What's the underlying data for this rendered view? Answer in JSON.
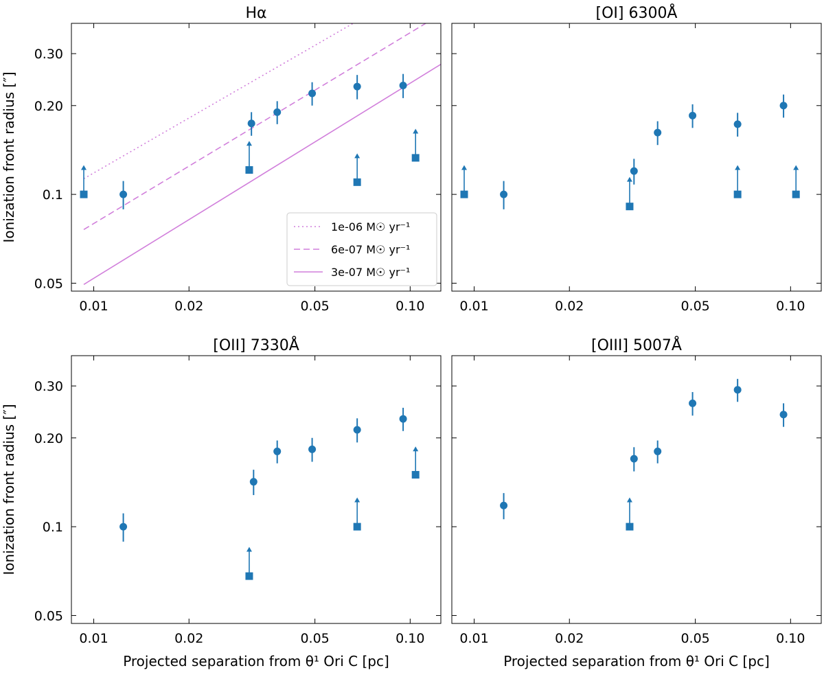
{
  "figure": {
    "x_axis_label": "Projected separation from θ¹ Ori C [pc]",
    "y_axis_label": "Ionization front radius [″]"
  },
  "chart_data": [
    {
      "type": "scatter",
      "title": "Hα",
      "xscale": "log",
      "yscale": "log",
      "xlim": [
        0.0085,
        0.125
      ],
      "ylim": [
        0.047,
        0.38
      ],
      "xticks": [
        0.01,
        0.02,
        0.05,
        0.1
      ],
      "xtick_labels": [
        "0.01",
        "0.02",
        "0.05",
        "0.10"
      ],
      "yticks": [
        0.05,
        0.1,
        0.2,
        0.3
      ],
      "ytick_labels": [
        "0.05",
        "0.1",
        "0.20",
        "0.30"
      ],
      "show_x_label": false,
      "show_y_label": true,
      "legend_position": "lower-right",
      "series": [
        {
          "marker": "circle",
          "color": "#1f77b4",
          "x": [
            0.0124,
            0.0315,
            0.038,
            0.049,
            0.068,
            0.095
          ],
          "y": [
            0.1,
            0.174,
            0.19,
            0.22,
            0.232,
            0.234
          ],
          "yerr": [
            0.011,
            0.016,
            0.017,
            0.02,
            0.022,
            0.022
          ]
        },
        {
          "marker": "square",
          "color": "#1f77b4",
          "lower_limit": true,
          "x": [
            0.0093,
            0.031,
            0.068,
            0.104
          ],
          "y": [
            0.1,
            0.121,
            0.11,
            0.133
          ],
          "arrow_to": [
            0.125,
            0.151,
            0.137,
            0.166
          ]
        }
      ],
      "lines": [
        {
          "label": "1e-06 M☉ yr⁻¹",
          "style": "dotted",
          "color": "#d17fdb",
          "x": [
            0.0093,
            0.066
          ],
          "y": [
            0.113,
            0.38
          ]
        },
        {
          "label": "6e-07 M☉ yr⁻¹",
          "style": "dashed",
          "color": "#d17fdb",
          "x": [
            0.0093,
            0.112
          ],
          "y": [
            0.076,
            0.38
          ]
        },
        {
          "label": "3e-07 M☉ yr⁻¹",
          "style": "solid",
          "color": "#d17fdb",
          "x": [
            0.0093,
            0.125
          ],
          "y": [
            0.0495,
            0.276
          ]
        }
      ]
    },
    {
      "type": "scatter",
      "title": "[OI] 6300Å",
      "xscale": "log",
      "yscale": "log",
      "xlim": [
        0.0085,
        0.125
      ],
      "ylim": [
        0.047,
        0.38
      ],
      "xticks": [
        0.01,
        0.02,
        0.05,
        0.1
      ],
      "xtick_labels": [
        "0.01",
        "0.02",
        "0.05",
        "0.10"
      ],
      "yticks": [
        0.05,
        0.1,
        0.2,
        0.3
      ],
      "ytick_labels": [],
      "show_x_label": false,
      "show_y_label": false,
      "series": [
        {
          "marker": "circle",
          "color": "#1f77b4",
          "x": [
            0.0124,
            0.032,
            0.038,
            0.049,
            0.068,
            0.095
          ],
          "y": [
            0.1,
            0.12,
            0.162,
            0.185,
            0.173,
            0.2
          ],
          "yerr": [
            0.011,
            0.012,
            0.015,
            0.017,
            0.016,
            0.018
          ]
        },
        {
          "marker": "square",
          "color": "#1f77b4",
          "lower_limit": true,
          "x": [
            0.0093,
            0.031,
            0.068,
            0.104
          ],
          "y": [
            0.1,
            0.091,
            0.1,
            0.1
          ],
          "arrow_to": [
            0.125,
            0.114,
            0.125,
            0.125
          ]
        }
      ]
    },
    {
      "type": "scatter",
      "title": "[OII] 7330Å",
      "xscale": "log",
      "yscale": "log",
      "xlim": [
        0.0085,
        0.125
      ],
      "ylim": [
        0.047,
        0.38
      ],
      "xticks": [
        0.01,
        0.02,
        0.05,
        0.1
      ],
      "xtick_labels": [
        "0.01",
        "0.02",
        "0.05",
        "0.10"
      ],
      "yticks": [
        0.05,
        0.1,
        0.2,
        0.3
      ],
      "ytick_labels": [
        "0.05",
        "0.1",
        "0.20",
        "0.30"
      ],
      "show_x_label": true,
      "show_y_label": true,
      "series": [
        {
          "marker": "circle",
          "color": "#1f77b4",
          "x": [
            0.0124,
            0.032,
            0.038,
            0.049,
            0.068,
            0.095
          ],
          "y": [
            0.1,
            0.142,
            0.18,
            0.183,
            0.213,
            0.232
          ],
          "yerr": [
            0.011,
            0.014,
            0.016,
            0.017,
            0.02,
            0.021
          ]
        },
        {
          "marker": "square",
          "color": "#1f77b4",
          "lower_limit": true,
          "x": [
            0.031,
            0.068,
            0.104
          ],
          "y": [
            0.068,
            0.1,
            0.15
          ],
          "arrow_to": [
            0.085,
            0.125,
            0.186
          ]
        }
      ]
    },
    {
      "type": "scatter",
      "title": "[OIII] 5007Å",
      "xscale": "log",
      "yscale": "log",
      "xlim": [
        0.0085,
        0.125
      ],
      "ylim": [
        0.047,
        0.38
      ],
      "xticks": [
        0.01,
        0.02,
        0.05,
        0.1
      ],
      "xtick_labels": [
        "0.01",
        "0.02",
        "0.05",
        "0.10"
      ],
      "yticks": [
        0.05,
        0.1,
        0.2,
        0.3
      ],
      "ytick_labels": [],
      "show_x_label": true,
      "show_y_label": false,
      "series": [
        {
          "marker": "circle",
          "color": "#1f77b4",
          "x": [
            0.0124,
            0.032,
            0.038,
            0.049,
            0.068,
            0.095
          ],
          "y": [
            0.118,
            0.17,
            0.18,
            0.262,
            0.291,
            0.24
          ],
          "yerr": [
            0.012,
            0.016,
            0.016,
            0.024,
            0.026,
            0.022
          ]
        },
        {
          "marker": "square",
          "color": "#1f77b4",
          "lower_limit": true,
          "x": [
            0.031
          ],
          "y": [
            0.1
          ],
          "arrow_to": [
            0.125
          ]
        }
      ]
    }
  ]
}
